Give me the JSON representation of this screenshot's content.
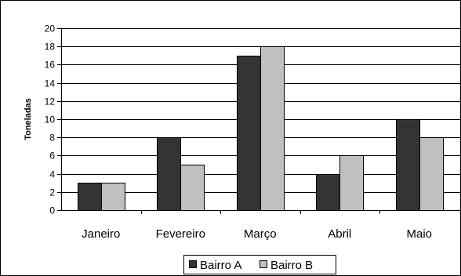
{
  "chart_data": {
    "type": "bar",
    "title": "",
    "xlabel": "",
    "ylabel": "Toneladas",
    "ylim": [
      0,
      20
    ],
    "ytick_step": 2,
    "ytick_labels": [
      "0",
      "2",
      "4",
      "6",
      "8",
      "10",
      "12",
      "14",
      "16",
      "18",
      "20"
    ],
    "grid": true,
    "legend_position": "bottom",
    "categories": [
      "Janeiro",
      "Fevereiro",
      "Março",
      "Abril",
      "Maio"
    ],
    "series": [
      {
        "name": "Bairro A",
        "values": [
          3,
          8,
          17,
          4,
          10
        ],
        "color": "#333333"
      },
      {
        "name": "Bairro B",
        "values": [
          3,
          5,
          18,
          6,
          8
        ],
        "color": "#c0c0c0"
      }
    ]
  }
}
